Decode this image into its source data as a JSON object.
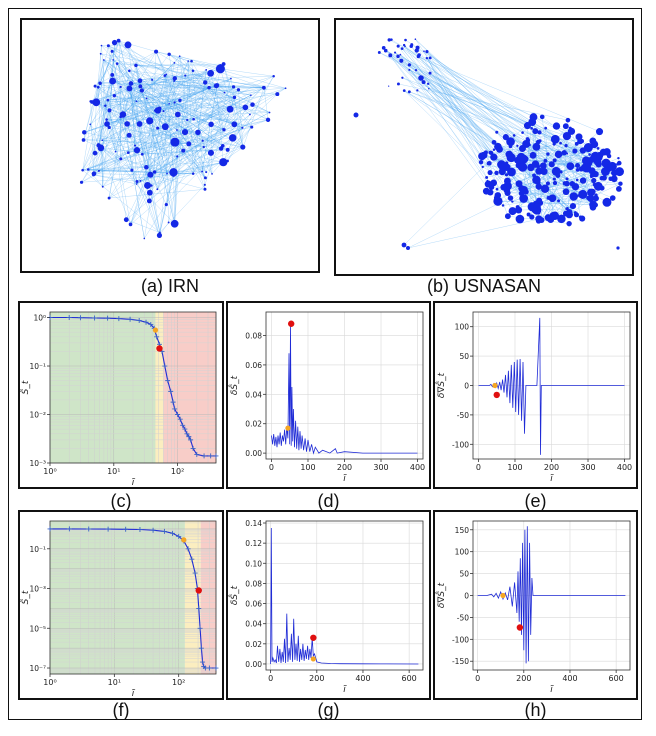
{
  "colors": {
    "edge": "#3fa0ee",
    "node": "#1428e6",
    "line": "#1f2bd6",
    "marker_red": "#e01010",
    "marker_orange": "#f5a623",
    "band_green": "#cfe5c8",
    "band_yellow": "#fbeec0",
    "band_red": "#f8cdc8",
    "grid": "#d9d9d9"
  },
  "captions": {
    "a": "(a) IRN",
    "b": "(b) USNASAN",
    "c": "(c)",
    "d": "(d)",
    "e": "(e)",
    "f": "(f)",
    "g": "(g)",
    "h": "(h)"
  },
  "chart_data": [
    {
      "panel": "c",
      "type": "line",
      "xscale": "log",
      "yscale": "log",
      "xlim": [
        1,
        400
      ],
      "ylim": [
        0.001,
        1.3
      ],
      "ylabel": "Ŝ_t",
      "xlabel": "ĩ",
      "xticks": [
        1,
        10,
        100
      ],
      "xtick_labels": [
        "10⁰",
        "10¹",
        "10²"
      ],
      "yticks": [
        0.001,
        0.01,
        0.1,
        1
      ],
      "ytick_labels": [
        "10⁻³",
        "10⁻²",
        "10⁻¹",
        "10⁰"
      ],
      "bands": [
        {
          "from": 1,
          "to": 45,
          "color": "green"
        },
        {
          "from": 45,
          "to": 60,
          "color": "yellow"
        },
        {
          "from": 60,
          "to": 400,
          "color": "red"
        }
      ],
      "x": [
        1,
        2,
        3,
        5,
        8,
        12,
        18,
        25,
        32,
        38,
        43,
        47,
        52,
        57,
        63,
        70,
        78,
        85,
        90,
        100,
        110,
        120,
        130,
        140,
        150,
        160,
        175,
        200,
        260,
        330,
        400
      ],
      "y": [
        1.0,
        1.0,
        0.99,
        0.98,
        0.97,
        0.95,
        0.92,
        0.87,
        0.8,
        0.72,
        0.6,
        0.4,
        0.28,
        0.2,
        0.1,
        0.05,
        0.03,
        0.018,
        0.013,
        0.01,
        0.008,
        0.006,
        0.005,
        0.004,
        0.0035,
        0.003,
        0.002,
        0.0015,
        0.0014,
        0.0014,
        0.0014
      ],
      "orange_point": [
        45,
        0.55
      ],
      "red_point": [
        52,
        0.23
      ]
    },
    {
      "panel": "d",
      "type": "line",
      "xlim": [
        -15,
        415
      ],
      "ylim": [
        -0.004,
        0.096
      ],
      "xlabel": "ĩ",
      "ylabel": "δŜ_t",
      "xticks": [
        0,
        100,
        200,
        300,
        400
      ],
      "yticks": [
        0.0,
        0.02,
        0.04,
        0.06,
        0.08
      ],
      "ytick_labels": [
        "0.00",
        "0.02",
        "0.04",
        "0.06",
        "0.08"
      ],
      "x": [
        0,
        3,
        6,
        9,
        12,
        15,
        18,
        21,
        24,
        27,
        30,
        33,
        36,
        39,
        42,
        45,
        48,
        50,
        52,
        54,
        56,
        58,
        60,
        63,
        66,
        69,
        72,
        75,
        78,
        81,
        84,
        88,
        92,
        96,
        100,
        105,
        110,
        115,
        120,
        130,
        140,
        160,
        175,
        180,
        200,
        250,
        300,
        350,
        400
      ],
      "y": [
        0.012,
        0.006,
        0.013,
        0.005,
        0.011,
        0.004,
        0.012,
        0.006,
        0.014,
        0.005,
        0.012,
        0.008,
        0.016,
        0.006,
        0.018,
        0.01,
        0.068,
        0.006,
        0.088,
        0.005,
        0.045,
        0.008,
        0.03,
        0.004,
        0.022,
        0.003,
        0.018,
        0.002,
        0.015,
        0.003,
        0.012,
        0.002,
        0.01,
        0.001,
        0.009,
        0.001,
        0.006,
        0.0,
        0.004,
        0.0,
        0.002,
        0.0,
        0.003,
        0.0,
        0.001,
        0.0,
        0.0,
        0.0,
        0.0
      ],
      "orange_point": [
        45,
        0.017
      ],
      "red_point": [
        54,
        0.088
      ]
    },
    {
      "panel": "e",
      "type": "line",
      "xlim": [
        -15,
        415
      ],
      "ylim": [
        -125,
        125
      ],
      "xlabel": "ĩ",
      "ylabel": "δ∇Ŝ_t",
      "xticks": [
        0,
        100,
        200,
        300,
        400
      ],
      "yticks": [
        -100,
        -50,
        0,
        50,
        100
      ],
      "x": [
        0,
        30,
        34,
        38,
        42,
        46,
        50,
        54,
        58,
        62,
        66,
        70,
        74,
        78,
        82,
        86,
        90,
        94,
        98,
        102,
        106,
        110,
        114,
        118,
        122,
        126,
        130,
        160,
        168,
        170,
        172,
        175,
        200,
        300,
        400
      ],
      "y": [
        0,
        0,
        2,
        -2,
        3,
        -3,
        4,
        -5,
        6,
        -8,
        10,
        -12,
        18,
        -20,
        25,
        -30,
        35,
        -38,
        40,
        -45,
        44,
        -50,
        45,
        -60,
        40,
        -82,
        0,
        0,
        115,
        -118,
        0,
        0,
        0,
        0,
        0
      ],
      "orange_point": [
        45,
        0
      ],
      "red_point": [
        50,
        -16
      ]
    },
    {
      "panel": "f",
      "type": "line",
      "xscale": "log",
      "yscale": "log",
      "xlim": [
        1,
        380
      ],
      "ylim": [
        5e-08,
        2.5
      ],
      "xlabel": "ĩ",
      "ylabel": "Ŝ_t",
      "xticks": [
        1,
        10,
        100
      ],
      "xtick_labels": [
        "10⁰",
        "10¹",
        "10²"
      ],
      "yticks": [
        1e-07,
        1e-05,
        0.001,
        0.1
      ],
      "ytick_labels": [
        "10⁻⁷",
        "10⁻⁵",
        "10⁻³",
        "10⁻¹"
      ],
      "bands": [
        {
          "from": 1,
          "to": 125,
          "color": "green"
        },
        {
          "from": 125,
          "to": 220,
          "color": "yellow"
        },
        {
          "from": 220,
          "to": 380,
          "color": "red"
        }
      ],
      "x": [
        1,
        2,
        4,
        8,
        15,
        25,
        40,
        60,
        80,
        100,
        120,
        140,
        160,
        180,
        195,
        205,
        215,
        225,
        235,
        245,
        260,
        300,
        380
      ],
      "y": [
        1.0,
        1.0,
        0.99,
        0.98,
        0.96,
        0.93,
        0.86,
        0.75,
        0.6,
        0.42,
        0.25,
        0.1,
        0.03,
        0.006,
        0.001,
        0.0001,
        1e-05,
        1e-06,
        2e-07,
        1.2e-07,
        1e-07,
        1e-07,
        1e-07
      ],
      "orange_point": [
        120,
        0.28
      ],
      "red_point": [
        205,
        0.0008
      ]
    },
    {
      "panel": "g",
      "type": "line",
      "xlim": [
        -20,
        660
      ],
      "ylim": [
        -0.006,
        0.142
      ],
      "xlabel": "ĩ",
      "ylabel": "δŜ_t",
      "xticks": [
        0,
        200,
        400,
        600
      ],
      "yticks": [
        0.0,
        0.02,
        0.04,
        0.06,
        0.08,
        0.1,
        0.12,
        0.14
      ],
      "ytick_labels": [
        "0.00",
        "0.02",
        "0.04",
        "0.06",
        "0.08",
        "0.10",
        "0.12",
        "0.14"
      ],
      "x": [
        0,
        3,
        6,
        10,
        15,
        20,
        25,
        30,
        35,
        40,
        45,
        50,
        55,
        60,
        65,
        70,
        75,
        80,
        85,
        90,
        95,
        100,
        105,
        110,
        115,
        120,
        125,
        130,
        135,
        140,
        145,
        150,
        155,
        160,
        165,
        170,
        175,
        180,
        185,
        190,
        200,
        220,
        260,
        300,
        400,
        500,
        640
      ],
      "y": [
        0.0,
        0.135,
        0.002,
        0.006,
        0.002,
        0.004,
        0.001,
        0.018,
        0.002,
        0.015,
        0.001,
        0.012,
        0.002,
        0.025,
        0.001,
        0.05,
        0.002,
        0.016,
        0.004,
        0.03,
        0.002,
        0.045,
        0.004,
        0.02,
        0.003,
        0.028,
        0.002,
        0.015,
        0.004,
        0.02,
        0.003,
        0.014,
        0.005,
        0.018,
        0.004,
        0.015,
        0.006,
        0.026,
        0.008,
        0.01,
        0.002,
        0.001,
        0.0005,
        0.0003,
        0.0002,
        0.0001,
        0.0
      ],
      "orange_point": [
        185,
        0.005
      ],
      "red_point": [
        185,
        0.026
      ]
    },
    {
      "panel": "h",
      "type": "line",
      "xlim": [
        -20,
        660
      ],
      "ylim": [
        -170,
        170
      ],
      "xlabel": "ĩ",
      "ylabel": "δ∇Ŝ_t",
      "xticks": [
        0,
        200,
        400,
        600
      ],
      "yticks": [
        -150,
        -100,
        -50,
        0,
        50,
        100,
        150
      ],
      "x": [
        0,
        40,
        60,
        70,
        80,
        90,
        100,
        110,
        120,
        130,
        140,
        150,
        160,
        170,
        175,
        180,
        185,
        190,
        195,
        200,
        205,
        210,
        215,
        220,
        225,
        230,
        235,
        240,
        250,
        640
      ],
      "y": [
        0,
        0,
        3,
        -3,
        5,
        -6,
        8,
        -8,
        6,
        -10,
        20,
        -25,
        30,
        -40,
        55,
        -60,
        85,
        -90,
        120,
        -125,
        150,
        -155,
        158,
        -150,
        120,
        -90,
        40,
        0,
        0,
        0
      ],
      "orange_point": [
        110,
        0
      ],
      "red_point": [
        183,
        -73
      ]
    }
  ]
}
